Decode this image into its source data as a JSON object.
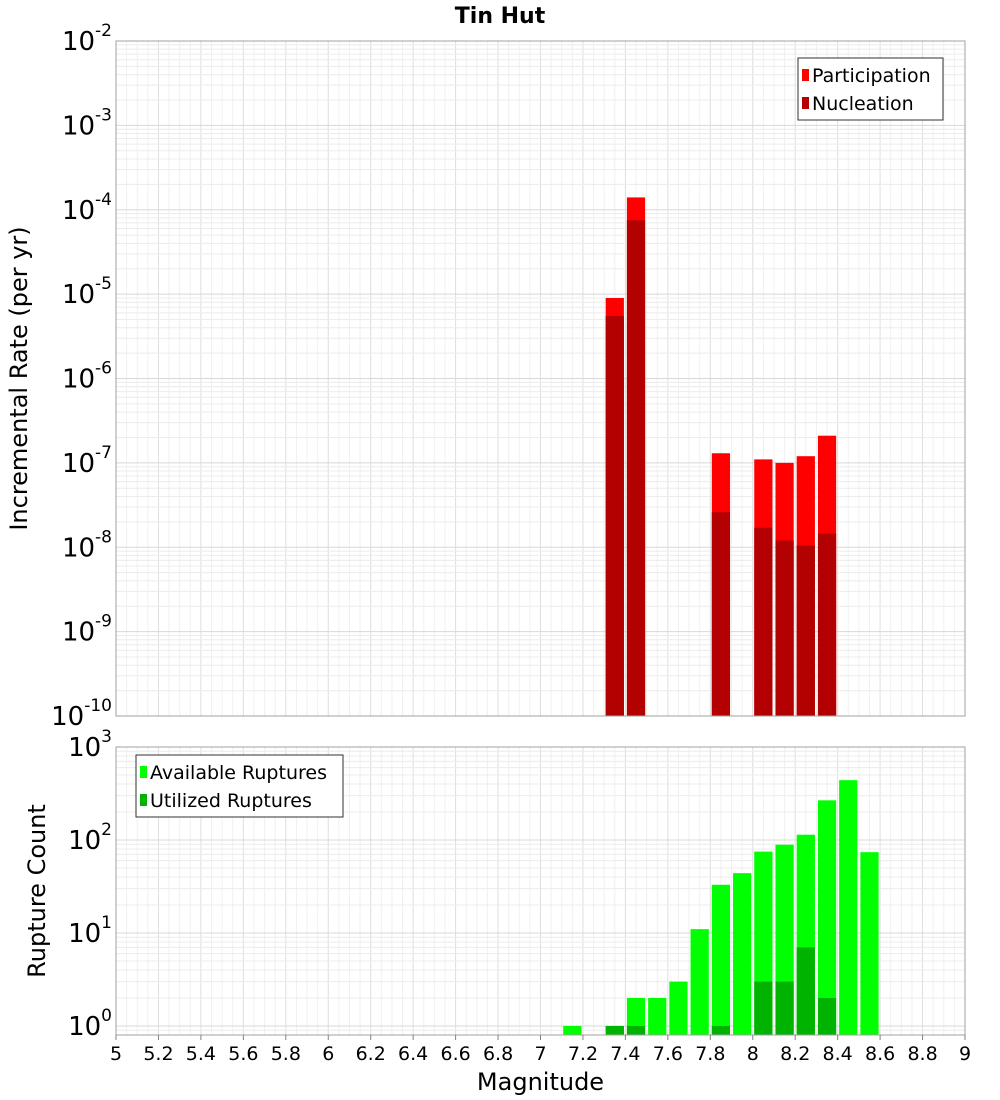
{
  "chart_data": [
    {
      "type": "bar",
      "title": "Tin Hut",
      "xlabel": "",
      "ylabel": "Incremental Rate (per yr)",
      "xlim": [
        5,
        9
      ],
      "ylim": [
        1e-10,
        0.01
      ],
      "yscale": "log",
      "grid": true,
      "legend_position": "top-right",
      "y_ticks": [
        {
          "base": "10",
          "exp": "-2",
          "value": 0.01
        },
        {
          "base": "10",
          "exp": "-3",
          "value": 0.001
        },
        {
          "base": "10",
          "exp": "-4",
          "value": 0.0001
        },
        {
          "base": "10",
          "exp": "-5",
          "value": 1e-05
        },
        {
          "base": "10",
          "exp": "-6",
          "value": 1e-06
        },
        {
          "base": "10",
          "exp": "-7",
          "value": 1e-07
        },
        {
          "base": "10",
          "exp": "-8",
          "value": 1e-08
        },
        {
          "base": "10",
          "exp": "-9",
          "value": 1e-09
        },
        {
          "base": "10",
          "exp": "-10",
          "value": 1e-10
        }
      ],
      "bin_width": 0.1,
      "series": [
        {
          "name": "Participation",
          "color": "#ff0000",
          "points": [
            {
              "x": 7.35,
              "y": 9e-06
            },
            {
              "x": 7.45,
              "y": 0.00014
            },
            {
              "x": 7.85,
              "y": 1.3e-07
            },
            {
              "x": 8.05,
              "y": 1.1e-07
            },
            {
              "x": 8.15,
              "y": 1e-07
            },
            {
              "x": 8.25,
              "y": 1.2e-07
            },
            {
              "x": 8.35,
              "y": 2.1e-07
            }
          ]
        },
        {
          "name": "Nucleation",
          "color": "#b30000",
          "points": [
            {
              "x": 7.35,
              "y": 5.5e-06
            },
            {
              "x": 7.45,
              "y": 7.5e-05
            },
            {
              "x": 7.85,
              "y": 2.6e-08
            },
            {
              "x": 8.05,
              "y": 1.7e-08
            },
            {
              "x": 8.15,
              "y": 1.2e-08
            },
            {
              "x": 8.25,
              "y": 1.05e-08
            },
            {
              "x": 8.35,
              "y": 1.45e-08
            }
          ]
        }
      ]
    },
    {
      "type": "bar",
      "title": "",
      "xlabel": "Magnitude",
      "ylabel": "Rupture Count",
      "xlim": [
        5,
        9
      ],
      "ylim": [
        0.8,
        1000
      ],
      "yscale": "log",
      "grid": true,
      "legend_position": "top-left",
      "x_ticks": [
        "5",
        "5.2",
        "5.4",
        "5.6",
        "5.8",
        "6",
        "6.2",
        "6.4",
        "6.6",
        "6.8",
        "7",
        "7.2",
        "7.4",
        "7.6",
        "7.8",
        "8",
        "8.2",
        "8.4",
        "8.6",
        "8.8",
        "9"
      ],
      "y_ticks": [
        {
          "base": "10",
          "exp": "3",
          "value": 1000
        },
        {
          "base": "10",
          "exp": "2",
          "value": 100
        },
        {
          "base": "10",
          "exp": "1",
          "value": 10
        },
        {
          "base": "10",
          "exp": "0",
          "value": 1
        }
      ],
      "bin_width": 0.1,
      "series": [
        {
          "name": "Available Ruptures",
          "color": "#00ff00",
          "points": [
            {
              "x": 7.15,
              "y": 1
            },
            {
              "x": 7.35,
              "y": 1
            },
            {
              "x": 7.45,
              "y": 2
            },
            {
              "x": 7.55,
              "y": 2
            },
            {
              "x": 7.65,
              "y": 3
            },
            {
              "x": 7.75,
              "y": 11
            },
            {
              "x": 7.85,
              "y": 33
            },
            {
              "x": 7.95,
              "y": 44
            },
            {
              "x": 8.05,
              "y": 75
            },
            {
              "x": 8.15,
              "y": 89
            },
            {
              "x": 8.25,
              "y": 114
            },
            {
              "x": 8.35,
              "y": 267
            },
            {
              "x": 8.45,
              "y": 440
            },
            {
              "x": 8.55,
              "y": 74
            }
          ]
        },
        {
          "name": "Utilized Ruptures",
          "color": "#00b300",
          "points": [
            {
              "x": 7.35,
              "y": 1
            },
            {
              "x": 7.45,
              "y": 1
            },
            {
              "x": 7.85,
              "y": 1
            },
            {
              "x": 8.05,
              "y": 3
            },
            {
              "x": 8.15,
              "y": 3
            },
            {
              "x": 8.25,
              "y": 7
            },
            {
              "x": 8.35,
              "y": 2
            }
          ]
        }
      ]
    }
  ]
}
